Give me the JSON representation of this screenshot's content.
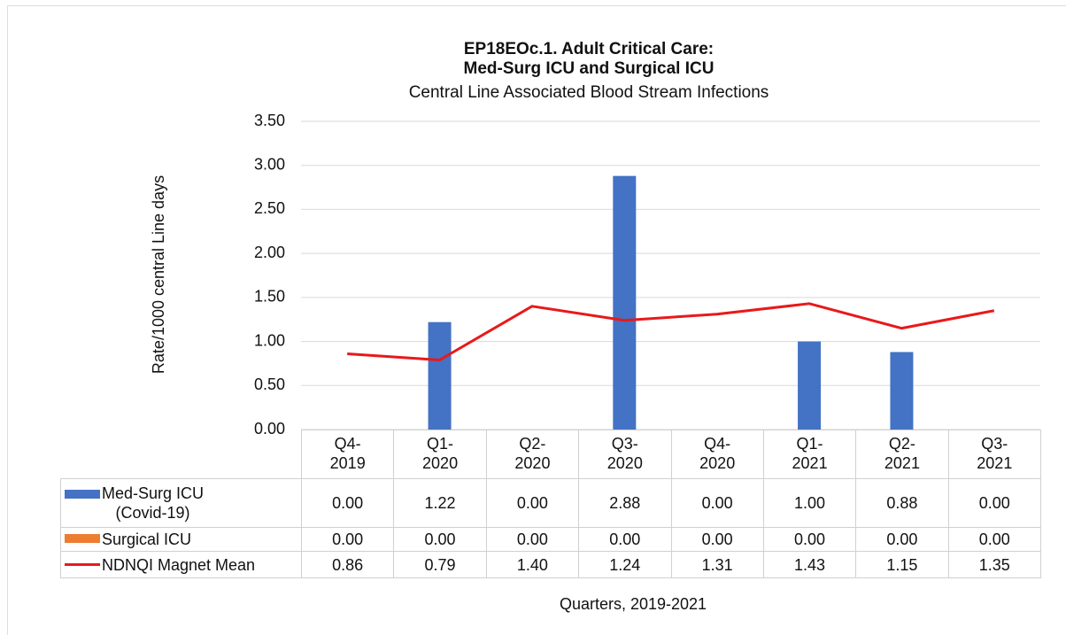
{
  "chart_data": {
    "type": "bar",
    "title": "EP18EOc.1. Adult Critical Care:\nMed-Surg ICU and Surgical ICU",
    "subtitle": "Central Line Associated Blood Stream Infections",
    "y_label": "Rate/1000 central Line days",
    "x_label": "Quarters, 2019-2021",
    "categories": [
      "Q4-\n2019",
      "Q1-\n2020",
      "Q2-\n2020",
      "Q3-\n2020",
      "Q4-\n2020",
      "Q1-\n2021",
      "Q2-\n2021",
      "Q3-\n2021"
    ],
    "series": [
      {
        "name": "Med-Surg ICU\n(Covid-19)",
        "type": "bar",
        "color": "#4472c4",
        "values": [
          0,
          1.22,
          0,
          2.88,
          0,
          1.0,
          0.88,
          0
        ],
        "value_labels": [
          "0.00",
          "1.22",
          "0.00",
          "2.88",
          "0.00",
          "1.00",
          "0.88",
          "0.00"
        ]
      },
      {
        "name": "Surgical ICU",
        "type": "bar",
        "color": "#ed7d31",
        "values": [
          0,
          0,
          0,
          0,
          0,
          0,
          0,
          0
        ],
        "value_labels": [
          "0.00",
          "0.00",
          "0.00",
          "0.00",
          "0.00",
          "0.00",
          "0.00",
          "0.00"
        ]
      },
      {
        "name": "NDNQI Magnet Mean",
        "type": "line",
        "color": "#e8191b",
        "values": [
          0.86,
          0.79,
          1.4,
          1.24,
          1.31,
          1.43,
          1.15,
          1.35
        ],
        "value_labels": [
          "0.86",
          "0.79",
          "1.40",
          "1.24",
          "1.31",
          "1.43",
          "1.15",
          "1.35"
        ]
      }
    ],
    "ylim": [
      0,
      3.5
    ],
    "yticks": [
      {
        "value": 0,
        "label": "0.00"
      },
      {
        "value": 0.5,
        "label": "0.50"
      },
      {
        "value": 1,
        "label": "1.00"
      },
      {
        "value": 1.5,
        "label": "1.50"
      },
      {
        "value": 2,
        "label": "2.00"
      },
      {
        "value": 2.5,
        "label": "2.50"
      },
      {
        "value": 3,
        "label": "3.00"
      },
      {
        "value": 3.5,
        "label": "3.50"
      }
    ],
    "grid": true
  }
}
